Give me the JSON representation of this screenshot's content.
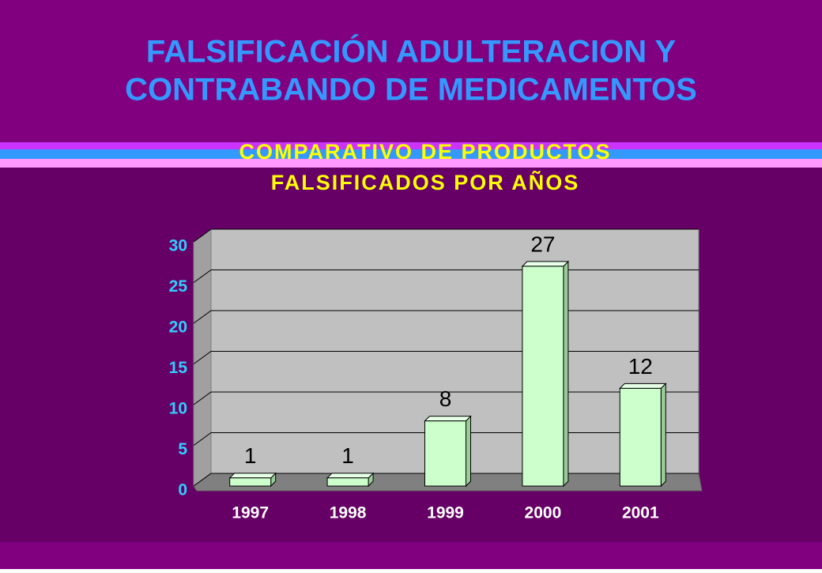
{
  "chart_data": {
    "type": "bar",
    "title": [
      "FALSIFICACIÓN ADULTERACION Y",
      "CONTRABANDO DE MEDICAMENTOS"
    ],
    "subtitle": [
      "COMPARATIVO DE  PRODUCTOS",
      "FALSIFICADOS POR AÑOS"
    ],
    "categories": [
      "1997",
      "1998",
      "1999",
      "2000",
      "2001"
    ],
    "values": [
      1,
      1,
      8,
      27,
      12
    ],
    "color": "#ccffcc",
    "ylim": [
      0,
      30
    ],
    "yticks": [
      0,
      5,
      10,
      15,
      20,
      25,
      30
    ],
    "grid": true
  }
}
